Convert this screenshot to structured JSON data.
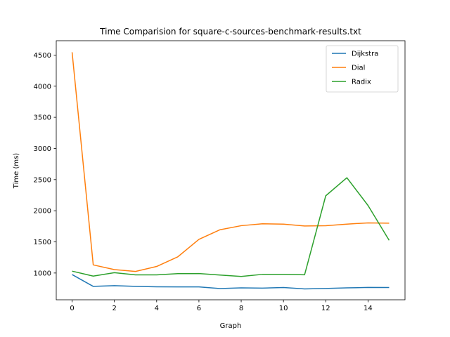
{
  "chart_data": {
    "type": "line",
    "title": "Time Comparision for square-c-sources-benchmark-results.txt",
    "xlabel": "Graph",
    "ylabel": "Time (ms)",
    "xlim": [
      -0.75,
      15.75
    ],
    "ylim": [
      570,
      4730
    ],
    "xticks": [
      0,
      2,
      4,
      6,
      8,
      10,
      12,
      14
    ],
    "yticks": [
      1000,
      1500,
      2000,
      2500,
      3000,
      3500,
      4000,
      4500
    ],
    "grid": false,
    "legend_position": "top-right",
    "x": [
      0,
      1,
      2,
      3,
      4,
      5,
      6,
      7,
      8,
      9,
      10,
      11,
      12,
      13,
      14,
      15
    ],
    "series": [
      {
        "name": "Dijkstra",
        "color": "#1f77b4",
        "values": [
          975,
          785,
          797,
          785,
          778,
          777,
          777,
          751,
          762,
          757,
          767,
          745,
          752,
          761,
          769,
          767
        ]
      },
      {
        "name": "Dial",
        "color": "#ff7f0e",
        "values": [
          4545,
          1130,
          1055,
          1025,
          1105,
          1260,
          1540,
          1695,
          1760,
          1790,
          1785,
          1755,
          1760,
          1785,
          1805,
          1800
        ]
      },
      {
        "name": "Radix",
        "color": "#2ca02c",
        "values": [
          1030,
          950,
          1005,
          970,
          970,
          990,
          992,
          968,
          945,
          978,
          978,
          972,
          2240,
          2530,
          2085,
          1525
        ]
      }
    ]
  }
}
